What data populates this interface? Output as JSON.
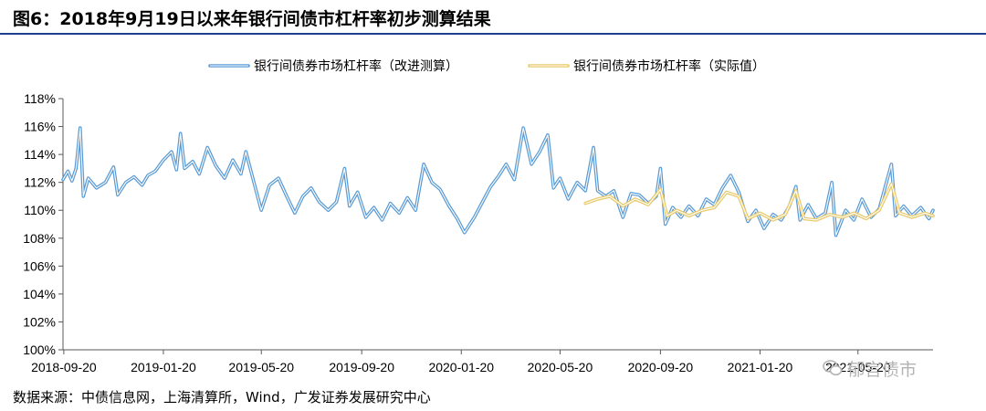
{
  "header": {
    "title": "图6：2018年9月19日以来年银行间债市杠杆率初步测算结果"
  },
  "footer": {
    "source": "数据来源：中债信息网，上海清算所，Wind，广发证券发展研究中心"
  },
  "watermark": {
    "text": "郁言债市",
    "icon": "wechat-icon"
  },
  "colors": {
    "improved": "#5b9bd5",
    "actual": "#e8c96a",
    "axis": "#595959"
  },
  "chart_data": {
    "type": "line",
    "title": "",
    "xlabel": "",
    "ylabel": "",
    "ylim": [
      100,
      118
    ],
    "y_ticks": [
      100,
      102,
      104,
      106,
      108,
      110,
      112,
      114,
      116,
      118
    ],
    "y_tick_labels": [
      "100%",
      "102%",
      "104%",
      "106%",
      "108%",
      "110%",
      "112%",
      "114%",
      "116%",
      "118%"
    ],
    "x_range": [
      "2018-09-19",
      "2021-08-20"
    ],
    "x_ticks": [
      "2018-09-20",
      "2019-01-20",
      "2019-05-20",
      "2019-09-20",
      "2020-01-20",
      "2020-05-20",
      "2020-09-20",
      "2021-01-20",
      "2021-05-20"
    ],
    "legend_position": "top",
    "grid": false,
    "series": [
      {
        "name": "银行间债券市场杠杆率（改进测算）",
        "color": "#5b9bd5",
        "points": [
          [
            "2018-09-19",
            112.2
          ],
          [
            "2018-09-25",
            112.8
          ],
          [
            "2018-09-30",
            112.1
          ],
          [
            "2018-10-05",
            113.0
          ],
          [
            "2018-10-10",
            115.9
          ],
          [
            "2018-10-14",
            111.0
          ],
          [
            "2018-10-20",
            112.3
          ],
          [
            "2018-10-30",
            111.6
          ],
          [
            "2018-11-10",
            112.0
          ],
          [
            "2018-11-20",
            113.1
          ],
          [
            "2018-11-25",
            111.1
          ],
          [
            "2018-12-05",
            112.0
          ],
          [
            "2018-12-15",
            112.4
          ],
          [
            "2018-12-25",
            111.8
          ],
          [
            "2019-01-01",
            112.5
          ],
          [
            "2019-01-10",
            112.8
          ],
          [
            "2019-01-20",
            113.6
          ],
          [
            "2019-01-30",
            114.2
          ],
          [
            "2019-02-05",
            112.9
          ],
          [
            "2019-02-10",
            115.5
          ],
          [
            "2019-02-15",
            113.0
          ],
          [
            "2019-02-25",
            113.5
          ],
          [
            "2019-03-05",
            112.6
          ],
          [
            "2019-03-15",
            114.5
          ],
          [
            "2019-03-25",
            113.2
          ],
          [
            "2019-04-05",
            112.3
          ],
          [
            "2019-04-15",
            113.6
          ],
          [
            "2019-04-25",
            112.6
          ],
          [
            "2019-05-01",
            114.2
          ],
          [
            "2019-05-10",
            112.2
          ],
          [
            "2019-05-20",
            110.0
          ],
          [
            "2019-05-30",
            111.8
          ],
          [
            "2019-06-10",
            112.3
          ],
          [
            "2019-06-20",
            111.0
          ],
          [
            "2019-06-30",
            109.8
          ],
          [
            "2019-07-10",
            111.0
          ],
          [
            "2019-07-20",
            111.6
          ],
          [
            "2019-07-30",
            110.6
          ],
          [
            "2019-08-10",
            110.0
          ],
          [
            "2019-08-20",
            110.6
          ],
          [
            "2019-08-30",
            113.0
          ],
          [
            "2019-09-05",
            110.3
          ],
          [
            "2019-09-15",
            111.3
          ],
          [
            "2019-09-25",
            109.5
          ],
          [
            "2019-10-05",
            110.2
          ],
          [
            "2019-10-15",
            109.3
          ],
          [
            "2019-10-25",
            110.5
          ],
          [
            "2019-11-05",
            109.8
          ],
          [
            "2019-11-15",
            110.9
          ],
          [
            "2019-11-25",
            110.0
          ],
          [
            "2019-12-05",
            113.3
          ],
          [
            "2019-12-15",
            112.0
          ],
          [
            "2019-12-25",
            111.5
          ],
          [
            "2020-01-05",
            110.3
          ],
          [
            "2020-01-15",
            109.4
          ],
          [
            "2020-01-24",
            108.4
          ],
          [
            "2020-02-05",
            109.5
          ],
          [
            "2020-02-15",
            110.6
          ],
          [
            "2020-02-25",
            111.7
          ],
          [
            "2020-03-05",
            112.4
          ],
          [
            "2020-03-15",
            113.3
          ],
          [
            "2020-03-25",
            112.2
          ],
          [
            "2020-04-05",
            115.9
          ],
          [
            "2020-04-15",
            113.3
          ],
          [
            "2020-04-25",
            114.2
          ],
          [
            "2020-05-05",
            115.4
          ],
          [
            "2020-05-12",
            111.6
          ],
          [
            "2020-05-20",
            112.3
          ],
          [
            "2020-05-30",
            110.8
          ],
          [
            "2020-06-10",
            112.0
          ],
          [
            "2020-06-20",
            111.4
          ],
          [
            "2020-06-30",
            114.5
          ],
          [
            "2020-07-05",
            111.4
          ],
          [
            "2020-07-15",
            111.0
          ],
          [
            "2020-07-25",
            111.4
          ],
          [
            "2020-08-05",
            109.5
          ],
          [
            "2020-08-15",
            111.2
          ],
          [
            "2020-08-25",
            111.1
          ],
          [
            "2020-09-05",
            110.5
          ],
          [
            "2020-09-15",
            111.0
          ],
          [
            "2020-09-20",
            113.0
          ],
          [
            "2020-09-26",
            109.0
          ],
          [
            "2020-10-05",
            110.2
          ],
          [
            "2020-10-15",
            109.5
          ],
          [
            "2020-10-25",
            110.3
          ],
          [
            "2020-11-05",
            109.6
          ],
          [
            "2020-11-15",
            110.8
          ],
          [
            "2020-11-25",
            110.4
          ],
          [
            "2020-12-05",
            111.6
          ],
          [
            "2020-12-15",
            112.5
          ],
          [
            "2020-12-25",
            111.3
          ],
          [
            "2021-01-05",
            109.2
          ],
          [
            "2021-01-15",
            110.0
          ],
          [
            "2021-01-25",
            108.7
          ],
          [
            "2021-02-05",
            109.7
          ],
          [
            "2021-02-15",
            109.3
          ],
          [
            "2021-02-25",
            110.3
          ],
          [
            "2021-03-05",
            111.7
          ],
          [
            "2021-03-10",
            109.3
          ],
          [
            "2021-03-20",
            110.4
          ],
          [
            "2021-03-30",
            109.4
          ],
          [
            "2021-04-10",
            109.8
          ],
          [
            "2021-04-18",
            112.0
          ],
          [
            "2021-04-23",
            108.2
          ],
          [
            "2021-05-05",
            110.0
          ],
          [
            "2021-05-15",
            109.3
          ],
          [
            "2021-05-25",
            110.8
          ],
          [
            "2021-06-05",
            109.5
          ],
          [
            "2021-06-15",
            110.1
          ],
          [
            "2021-06-30",
            113.3
          ],
          [
            "2021-07-05",
            109.6
          ],
          [
            "2021-07-15",
            110.3
          ],
          [
            "2021-07-25",
            109.6
          ],
          [
            "2021-08-05",
            110.2
          ],
          [
            "2021-08-15",
            109.4
          ],
          [
            "2021-08-20",
            110.0
          ]
        ]
      },
      {
        "name": "银行间债券市场杠杆率（实际值）",
        "color": "#e8c96a",
        "points": [
          [
            "2020-06-20",
            110.5
          ],
          [
            "2020-07-05",
            110.8
          ],
          [
            "2020-07-20",
            111.0
          ],
          [
            "2020-08-05",
            110.3
          ],
          [
            "2020-08-20",
            110.8
          ],
          [
            "2020-09-05",
            110.4
          ],
          [
            "2020-09-20",
            111.5
          ],
          [
            "2020-09-28",
            109.6
          ],
          [
            "2020-10-10",
            110.0
          ],
          [
            "2020-10-25",
            109.6
          ],
          [
            "2020-11-10",
            110.0
          ],
          [
            "2020-11-25",
            110.2
          ],
          [
            "2020-12-10",
            111.3
          ],
          [
            "2020-12-25",
            111.0
          ],
          [
            "2021-01-05",
            109.4
          ],
          [
            "2021-01-20",
            109.8
          ],
          [
            "2021-02-05",
            109.3
          ],
          [
            "2021-02-20",
            109.7
          ],
          [
            "2021-03-05",
            111.4
          ],
          [
            "2021-03-15",
            109.4
          ],
          [
            "2021-03-30",
            109.3
          ],
          [
            "2021-04-15",
            109.7
          ],
          [
            "2021-05-01",
            109.5
          ],
          [
            "2021-05-15",
            109.8
          ],
          [
            "2021-05-30",
            109.4
          ],
          [
            "2021-06-15",
            110.0
          ],
          [
            "2021-06-30",
            111.9
          ],
          [
            "2021-07-10",
            109.8
          ],
          [
            "2021-07-25",
            109.5
          ],
          [
            "2021-08-10",
            109.8
          ],
          [
            "2021-08-20",
            109.6
          ]
        ]
      }
    ]
  }
}
